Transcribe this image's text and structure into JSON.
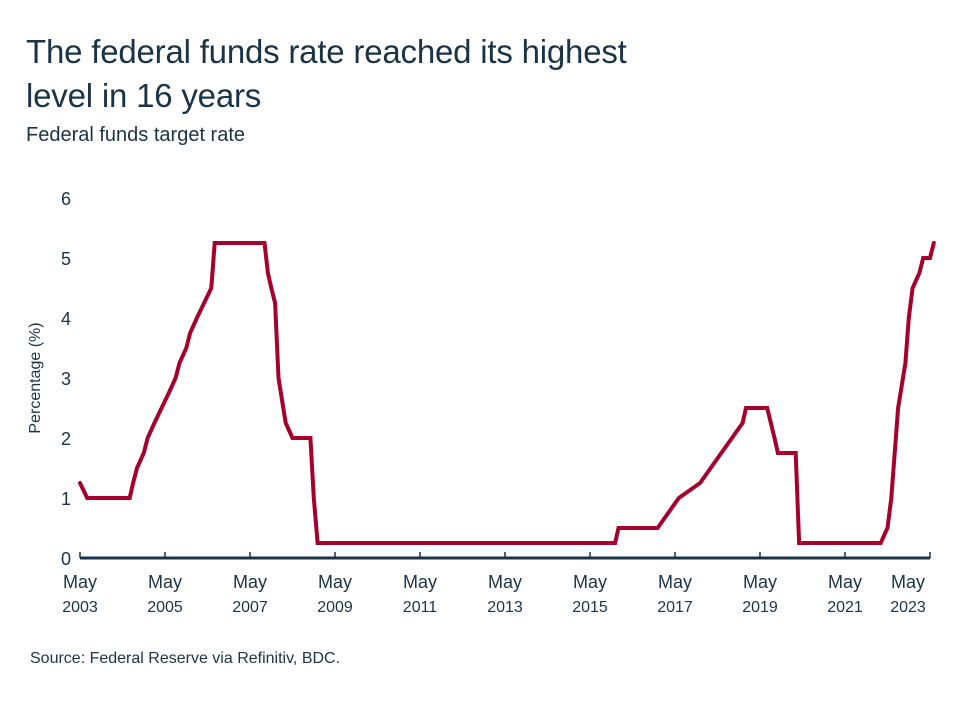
{
  "chart_data": {
    "type": "line",
    "title": "The federal funds rate reached its highest level in 16 years",
    "subtitle": "Federal funds target rate",
    "xlabel": "",
    "ylabel": "Percentage (%)",
    "ylim": [
      0,
      6
    ],
    "yticks": [
      "0",
      "1",
      "2",
      "3",
      "4",
      "5",
      "6"
    ],
    "xlim": [
      2003.33,
      2023.33
    ],
    "xticks": [
      {
        "month": "May",
        "year": "2003",
        "x": 2003.33
      },
      {
        "month": "May",
        "year": "2005",
        "x": 2005.33
      },
      {
        "month": "May",
        "year": "2007",
        "x": 2007.33
      },
      {
        "month": "May",
        "year": "2009",
        "x": 2009.33
      },
      {
        "month": "May",
        "year": "2011",
        "x": 2011.33
      },
      {
        "month": "May",
        "year": "2013",
        "x": 2013.33
      },
      {
        "month": "May",
        "year": "2015",
        "x": 2015.33
      },
      {
        "month": "May",
        "year": "2017",
        "x": 2017.33
      },
      {
        "month": "May",
        "year": "2019",
        "x": 2019.33
      },
      {
        "month": "May",
        "year": "2021",
        "x": 2021.33
      },
      {
        "month": "May",
        "year": "2023",
        "x": 2023.33
      }
    ],
    "grid": false,
    "legend": "none",
    "series": [
      {
        "name": "Federal funds target rate",
        "color": "#a6002c",
        "step": true,
        "points": [
          [
            2003.33,
            1.25
          ],
          [
            2003.5,
            1.0
          ],
          [
            2004.5,
            1.0
          ],
          [
            2004.58,
            1.25
          ],
          [
            2004.67,
            1.5
          ],
          [
            2004.83,
            1.75
          ],
          [
            2004.92,
            2.0
          ],
          [
            2005.08,
            2.25
          ],
          [
            2005.25,
            2.5
          ],
          [
            2005.42,
            2.75
          ],
          [
            2005.58,
            3.0
          ],
          [
            2005.67,
            3.25
          ],
          [
            2005.83,
            3.5
          ],
          [
            2005.92,
            3.75
          ],
          [
            2006.08,
            4.0
          ],
          [
            2006.25,
            4.25
          ],
          [
            2006.42,
            4.5
          ],
          [
            2006.5,
            5.25
          ],
          [
            2007.67,
            5.25
          ],
          [
            2007.75,
            4.75
          ],
          [
            2007.83,
            4.5
          ],
          [
            2007.92,
            4.25
          ],
          [
            2008.0,
            3.0
          ],
          [
            2008.17,
            2.25
          ],
          [
            2008.33,
            2.0
          ],
          [
            2008.75,
            2.0
          ],
          [
            2008.83,
            1.0
          ],
          [
            2008.92,
            0.25
          ],
          [
            2015.92,
            0.25
          ],
          [
            2016.0,
            0.5
          ],
          [
            2016.92,
            0.5
          ],
          [
            2017.17,
            0.75
          ],
          [
            2017.42,
            1.0
          ],
          [
            2017.92,
            1.25
          ],
          [
            2018.17,
            1.5
          ],
          [
            2018.42,
            1.75
          ],
          [
            2018.67,
            2.0
          ],
          [
            2018.92,
            2.25
          ],
          [
            2019.0,
            2.5
          ],
          [
            2019.5,
            2.5
          ],
          [
            2019.67,
            2.0
          ],
          [
            2019.75,
            1.75
          ],
          [
            2020.17,
            1.75
          ],
          [
            2020.25,
            0.25
          ],
          [
            2022.17,
            0.25
          ],
          [
            2022.33,
            0.5
          ],
          [
            2022.42,
            1.0
          ],
          [
            2022.5,
            1.75
          ],
          [
            2022.58,
            2.5
          ],
          [
            2022.75,
            3.25
          ],
          [
            2022.83,
            4.0
          ],
          [
            2022.92,
            4.5
          ],
          [
            2023.08,
            4.75
          ],
          [
            2023.17,
            5.0
          ],
          [
            2023.33,
            5.0
          ],
          [
            2023.42,
            5.25
          ]
        ]
      }
    ]
  },
  "footer": {
    "source": "Source: Federal Reserve via Refinitiv, BDC."
  }
}
